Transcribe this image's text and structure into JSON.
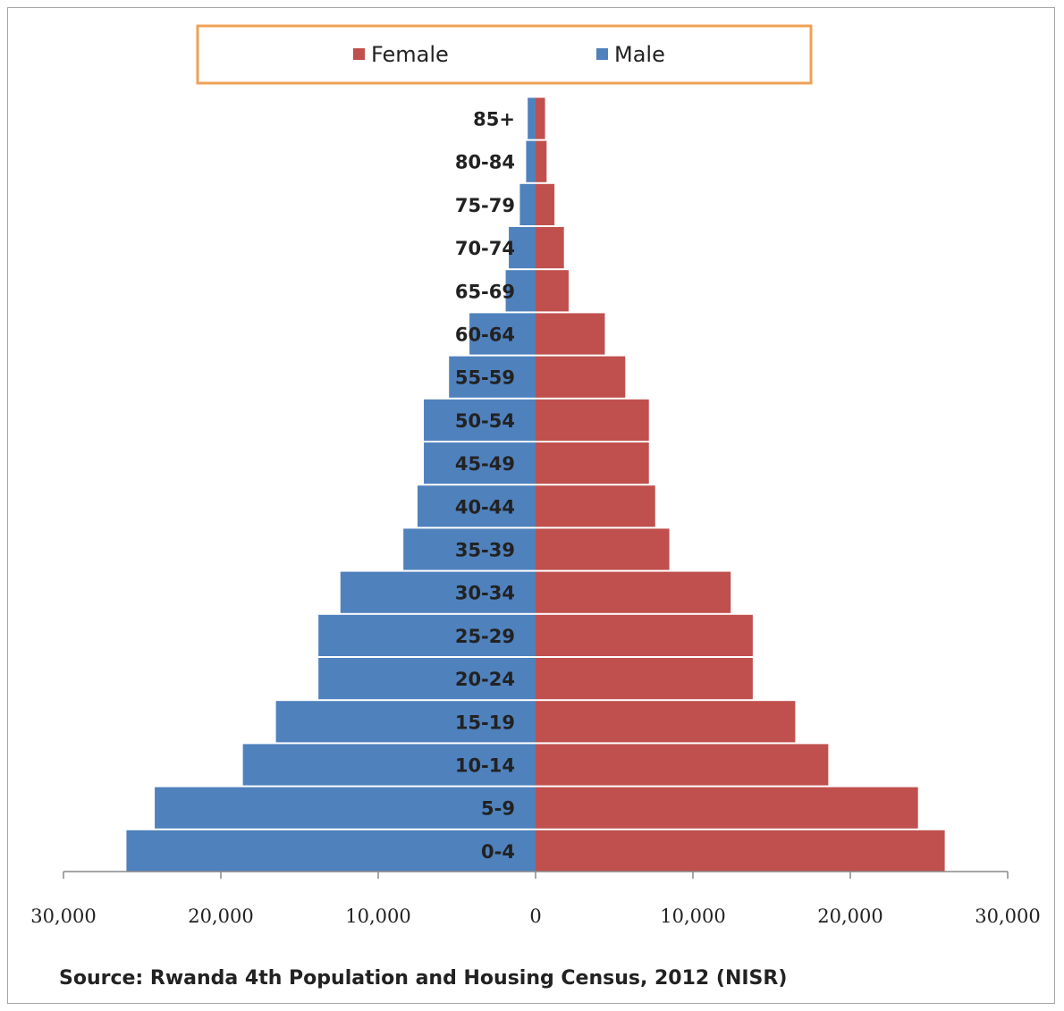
{
  "chart_data": {
    "type": "bar",
    "orientation": "horizontal",
    "layout": "population-pyramid",
    "categories": [
      "0-4",
      "5-9",
      "10-14",
      "15-19",
      "20-24",
      "25-29",
      "30-34",
      "35-39",
      "40-44",
      "45-49",
      "50-54",
      "55-59",
      "60-64",
      "65-69",
      "70-74",
      "75-79",
      "80-84",
      "85+"
    ],
    "series": [
      {
        "name": "Female",
        "color": "#c0504d",
        "values": [
          26000,
          24300,
          18600,
          16500,
          13800,
          13800,
          12400,
          8500,
          7600,
          7200,
          7200,
          5700,
          4400,
          2100,
          1800,
          1200,
          700,
          600
        ]
      },
      {
        "name": "Male",
        "color": "#4f81bd",
        "values": [
          26000,
          24200,
          18600,
          16500,
          13800,
          13800,
          12400,
          8400,
          7500,
          7100,
          7100,
          5500,
          4200,
          1900,
          1700,
          1000,
          600,
          500
        ]
      }
    ],
    "xlim": [
      -30000,
      30000
    ],
    "xticks": [
      -30000,
      -20000,
      -10000,
      0,
      10000,
      20000,
      30000
    ],
    "xtick_labels": [
      "30,000",
      "20,000",
      "10,000",
      "0",
      "10,000",
      "20,000",
      "30,000"
    ],
    "grid": false,
    "legend": {
      "position": "top",
      "entries": [
        "Female",
        "Male"
      ]
    },
    "source_note": "Source: Rwanda 4th Population and Housing Census, 2012 (NISR)"
  }
}
